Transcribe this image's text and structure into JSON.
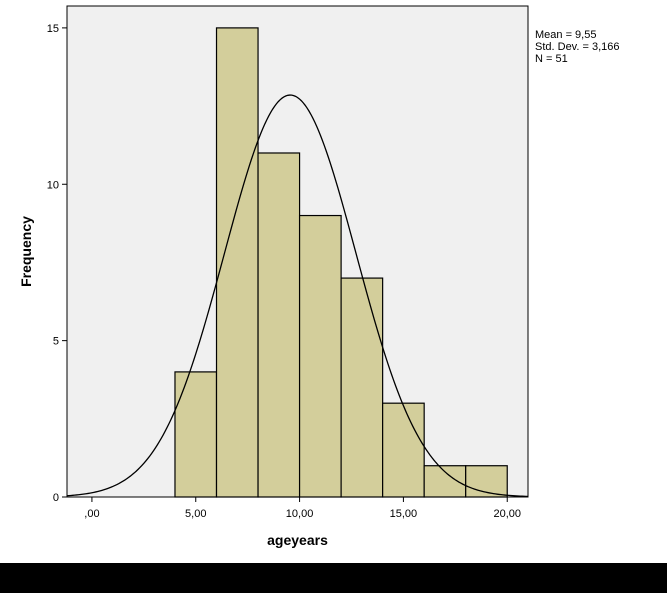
{
  "chart_data": {
    "type": "bar",
    "subtype": "histogram",
    "xlabel": "ageyears",
    "ylabel": "Frequency",
    "bins": [
      {
        "from": 4,
        "to": 6,
        "count": 4
      },
      {
        "from": 6,
        "to": 8,
        "count": 15
      },
      {
        "from": 8,
        "to": 10,
        "count": 11
      },
      {
        "from": 10,
        "to": 12,
        "count": 9
      },
      {
        "from": 12,
        "to": 14,
        "count": 7
      },
      {
        "from": 14,
        "to": 16,
        "count": 3
      },
      {
        "from": 16,
        "to": 18,
        "count": 1
      },
      {
        "from": 18,
        "to": 20,
        "count": 1
      }
    ],
    "xlim": [
      -1.2,
      21
    ],
    "ylim": [
      0,
      15.7
    ],
    "x_ticks": [
      0,
      5,
      10,
      15,
      20
    ],
    "x_tick_labels": [
      ",00",
      "5,00",
      "10,00",
      "15,00",
      "20,00"
    ],
    "y_ticks": [
      0,
      5,
      10,
      15
    ],
    "y_tick_labels": [
      "0",
      "5",
      "10",
      "15"
    ],
    "normal_curve": {
      "mean": 9.55,
      "std_dev": 3.166,
      "n": 51,
      "bin_width": 2
    },
    "stats_text": [
      "Mean = 9,55",
      "Std. Dev. = 3,166",
      "N = 51"
    ],
    "grid": false,
    "colors": {
      "plot_background": "#f0f0f0",
      "bar_fill": "#d3ce9b",
      "bar_stroke": "#000000",
      "curve": "#000000",
      "bottom_band": "#000000"
    }
  }
}
